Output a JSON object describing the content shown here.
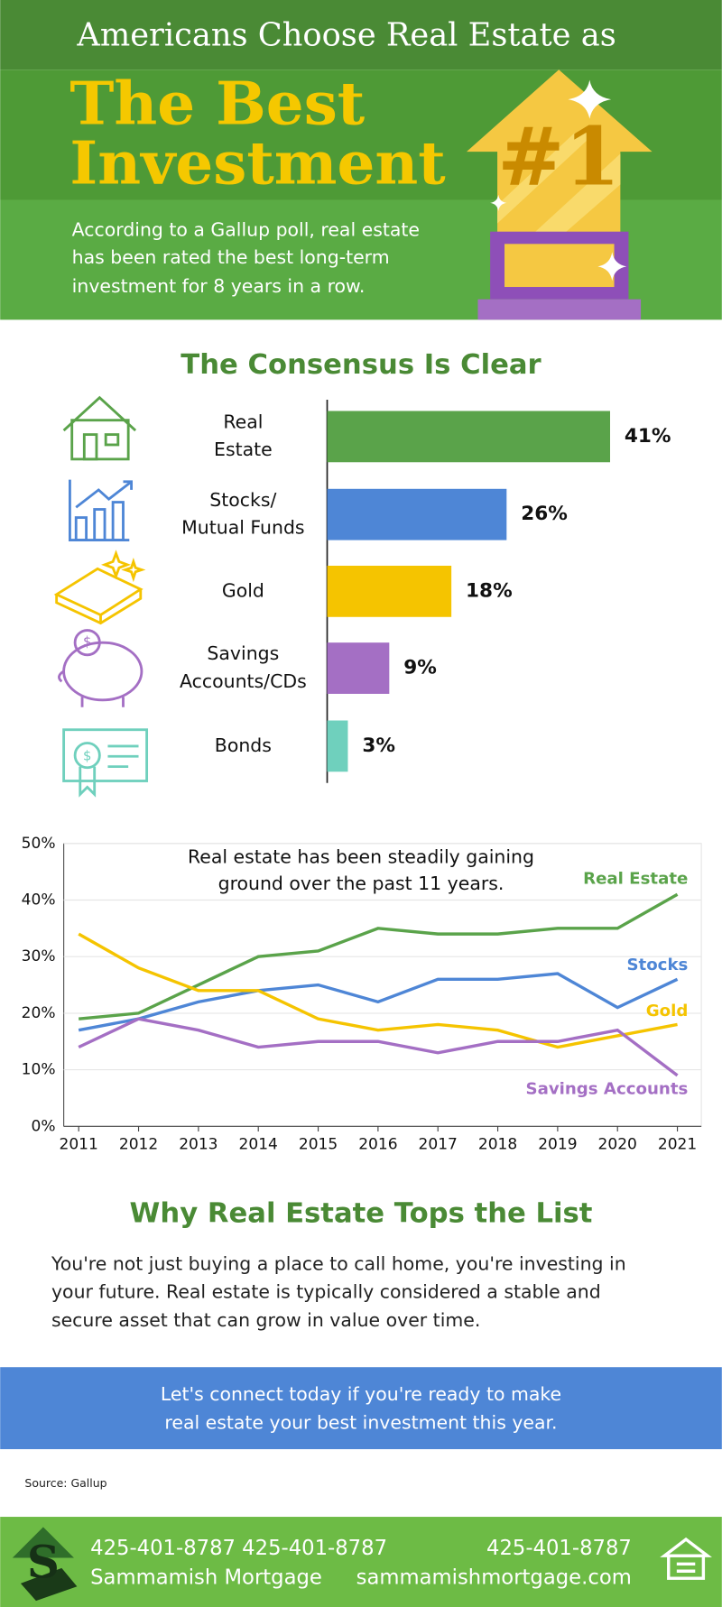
{
  "header": {
    "kicker": "Americans Choose Real Estate as",
    "title_lines": [
      "The Best",
      "Investment"
    ],
    "badge": "#1",
    "description": [
      "According to a Gallup poll, real estate",
      "has been rated the best long-term",
      "investment for 8 years in a row."
    ]
  },
  "chart_data": [
    {
      "type": "hbar",
      "title": "The Consensus Is Clear",
      "categories": [
        "Real\nEstate",
        "Stocks/\nMutual Funds",
        "Gold",
        "Savings\nAccounts/CDs",
        "Bonds"
      ],
      "values": [
        41,
        26,
        18,
        9,
        3
      ],
      "value_labels": [
        "41%",
        "26%",
        "18%",
        "9%",
        "3%"
      ],
      "colors": [
        "#5aa34a",
        "#4e86d6",
        "#f5c400",
        "#a46fc4",
        "#6fd0bd"
      ],
      "xlim": [
        0,
        41
      ]
    },
    {
      "type": "line",
      "annotation": [
        "Real estate has been steadily gaining",
        "ground over the past 11 years."
      ],
      "x": [
        2011,
        2012,
        2013,
        2014,
        2015,
        2016,
        2017,
        2018,
        2019,
        2020,
        2021
      ],
      "xlim": [
        2010.75,
        2021.4
      ],
      "xticks": [
        2011,
        2012,
        2013,
        2014,
        2015,
        2016,
        2017,
        2018,
        2019,
        2020,
        2021
      ],
      "ylim": [
        0,
        50
      ],
      "yticks": [
        {
          "value": 0,
          "label": "0%"
        },
        {
          "value": 10,
          "label": "10%"
        },
        {
          "value": 20,
          "label": "20%"
        },
        {
          "value": 30,
          "label": "30%"
        },
        {
          "value": 40,
          "label": "40%"
        },
        {
          "value": 50,
          "label": "50%"
        }
      ],
      "grid": true,
      "series": [
        {
          "name": "Real Estate",
          "color": "#5aa34a",
          "values": [
            19,
            20,
            25,
            30,
            31,
            35,
            34,
            34,
            35,
            35,
            41
          ]
        },
        {
          "name": "Stocks",
          "color": "#4e86d6",
          "values": [
            17,
            19,
            22,
            24,
            25,
            22,
            26,
            26,
            27,
            21,
            26
          ]
        },
        {
          "name": "Gold",
          "color": "#f5c400",
          "values": [
            34,
            28,
            24,
            24,
            19,
            17,
            18,
            17,
            14,
            16,
            18
          ]
        },
        {
          "name": "Savings Accounts",
          "color": "#a46fc4",
          "values": [
            14,
            19,
            17,
            14,
            15,
            15,
            13,
            15,
            15,
            17,
            9
          ]
        }
      ]
    }
  ],
  "why": {
    "title": "Why Real Estate Tops the List",
    "body": [
      "You're not just buying a place to call home, you're investing in",
      "your future. Real estate is typically considered a stable and",
      "secure asset that can grow in value over time."
    ]
  },
  "banner": [
    "Let's connect today if you're ready to make",
    "real estate your best investment this year."
  ],
  "source": "Source: Gallup",
  "footer": {
    "phones": "425-401-8787 425-401-8787",
    "company": "Sammamish Mortgage",
    "phone": "425-401-8787",
    "website": "sammamishmortgage.com"
  }
}
